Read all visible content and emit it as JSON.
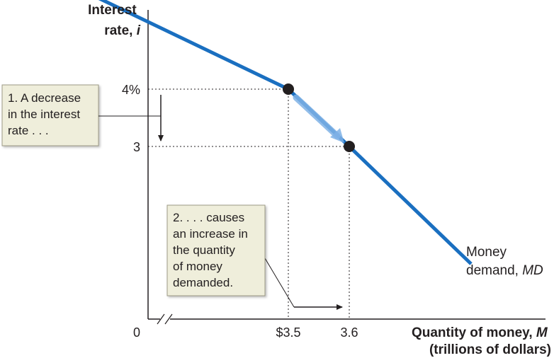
{
  "chart_data": {
    "type": "line",
    "title": "",
    "ylabel": [
      "Interest",
      "rate, i"
    ],
    "xlabel": [
      "Quantity of money, M",
      "(trillions of dollars)"
    ],
    "origin_label": "0",
    "x_ticks": [
      {
        "value": 3.5,
        "label": "$3.5"
      },
      {
        "value": 3.6,
        "label": "3.6"
      }
    ],
    "y_ticks": [
      {
        "value": 4,
        "label": "4%"
      },
      {
        "value": 3,
        "label": "3"
      }
    ],
    "series": [
      {
        "name": "Money demand, MD",
        "name_parts": [
          "Money",
          "demand, MD"
        ],
        "color": "#1a6fc0",
        "x": [
          3.0,
          3.5,
          3.6,
          3.8
        ],
        "y": [
          6.55,
          4.0,
          3.0,
          0.95
        ]
      }
    ],
    "points": [
      {
        "x": 3.5,
        "y": 4
      },
      {
        "x": 3.6,
        "y": 3
      }
    ],
    "xlim": [
      3.0,
      3.8
    ],
    "ylim": [
      0,
      6.7
    ],
    "axis_break": true,
    "grid": false,
    "annotations": [
      {
        "id": "note1",
        "lines": [
          "1. A decrease",
          "in the interest",
          "rate . . ."
        ]
      },
      {
        "id": "note2",
        "lines": [
          "2. . . . causes",
          "an increase in",
          "the quantity",
          "of money",
          "demanded."
        ]
      }
    ],
    "colors": {
      "curve": "#1a6fc0",
      "note_fill": "#efeedb",
      "ink": "#231f20"
    }
  }
}
